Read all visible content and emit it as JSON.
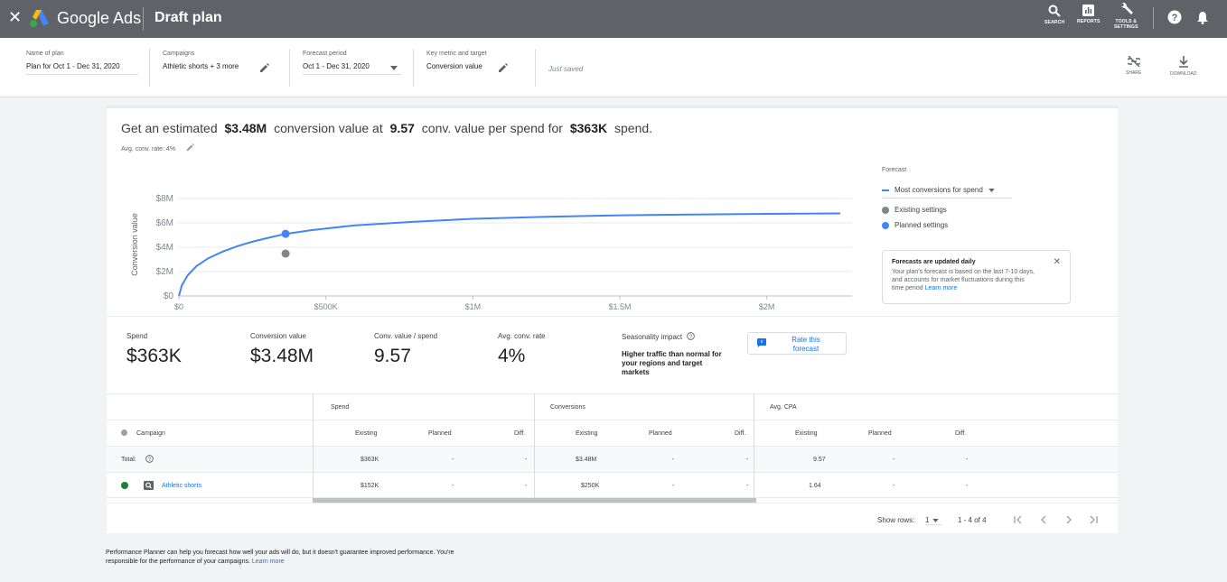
{
  "topbar": {
    "close_label": "✕",
    "brand": "Google Ads",
    "page_title": "Draft plan",
    "tools": [
      "SEARCH",
      "REPORTS",
      "TOOLS &",
      "SETTINGS"
    ]
  },
  "plan": {
    "name_label": "Name of plan",
    "name_value": "Plan for Oct 1 - Dec 31, 2020",
    "campaigns_label": "Campaigns",
    "campaigns_value": "Athletic shorts + 3 more",
    "period_label": "Forecast period",
    "period_value": "Oct 1 - Dec 31, 2020",
    "metric_label": "Key metric and target",
    "metric_value": "Conversion value",
    "saved_status": "Just saved",
    "share_label": "SHARE",
    "download_label": "DOWNLOAD"
  },
  "summary": {
    "prefix": "Get an estimated",
    "conv_value": "$3.48M",
    "mid1": "conversion value at",
    "ratio": "9.57",
    "mid2": "conv. value per spend for",
    "spend": "$363K",
    "suffix": "spend.",
    "avg_rate": "Avg. conv. rate: 4%"
  },
  "chart_data": {
    "type": "line",
    "ylabel": "Conversion value",
    "xlabel": "",
    "y_ticks": [
      "$8M",
      "$6M",
      "$4M",
      "$2M",
      "$0"
    ],
    "x_ticks": [
      "$0",
      "$500K",
      "$1M",
      "$1.5M",
      "$2M"
    ],
    "ylim": [
      0,
      8000000
    ],
    "xlim": [
      0,
      2290000
    ],
    "grid": true,
    "series": [
      {
        "name": "Most conversions for spend",
        "color": "#4285f4",
        "x": [
          0,
          10000,
          30000,
          60000,
          100000,
          150000,
          200000,
          250000,
          300000,
          363000,
          450000,
          600000,
          800000,
          1000000,
          1250000,
          1500000,
          1750000,
          2000000,
          2250000
        ],
        "y": [
          0,
          880000,
          1700000,
          2450000,
          3100000,
          3650000,
          4100000,
          4450000,
          4750000,
          5100000,
          5400000,
          5800000,
          6100000,
          6330000,
          6500000,
          6620000,
          6690000,
          6740000,
          6780000
        ]
      }
    ],
    "points": [
      {
        "name": "Existing settings",
        "x": 363000,
        "y": 3480000,
        "color": "#80868b"
      },
      {
        "name": "Planned settings",
        "x": 363000,
        "y": 5100000,
        "color": "#4285f4"
      }
    ]
  },
  "legend": {
    "title": "Forecast",
    "selector": "Most conversions for spend",
    "existing": "Existing settings",
    "planned": "Planned settings"
  },
  "info": {
    "title": "Forecasts are updated daily",
    "body": "Your plan's forecast is based on the last 7-10 days, and accounts for market fluctuations during this time period",
    "link": "Learn more"
  },
  "metrics": {
    "spend_label": "Spend",
    "spend_value": "$363K",
    "convval_label": "Conversion value",
    "convval_value": "$3.48M",
    "ratio_label": "Conv. value / spend",
    "ratio_value": "9.57",
    "rate_label": "Avg. conv. rate",
    "rate_value": "4%",
    "season_label": "Seasonality impact",
    "season_value": "Higher traffic than normal for your regions and target markets",
    "rate_button": "Rate this forecast"
  },
  "table": {
    "groups": [
      "Spend",
      "Conversions",
      "Avg. CPA"
    ],
    "campaign_header": "Campaign",
    "sub_headers": [
      "Existing",
      "Planned",
      "Diff."
    ],
    "total_label": "Total:",
    "total": [
      "$363K",
      "-",
      "-",
      "$3.48M",
      "-",
      "-",
      "9.57",
      "-",
      "-"
    ],
    "row_name": "Athletic shorts",
    "row": [
      "$152K",
      "-",
      "-",
      "$250K",
      "-",
      "-",
      "1.64",
      "-",
      "-"
    ],
    "status_color": "#188038"
  },
  "pager": {
    "show_rows_label": "Show rows:",
    "rows_value": "1",
    "range": "1 - 4 of 4"
  },
  "footer": {
    "text": "Performance Planner can help you forecast how well your ads will do, but it doesn't guarantee improved performance. You're responsible for the performance of your campaigns.",
    "link": "Learn more"
  }
}
